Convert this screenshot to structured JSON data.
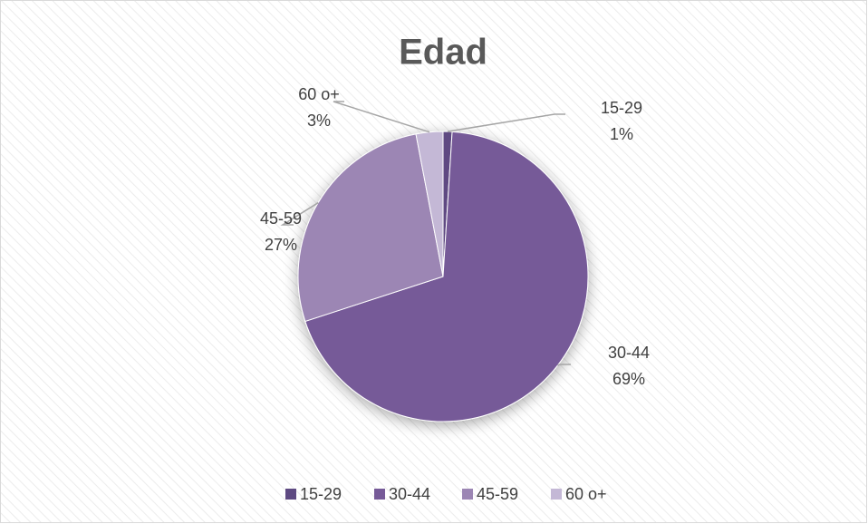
{
  "chart_data": {
    "type": "pie",
    "title": "Edad",
    "categories": [
      "15-29",
      "30-44",
      "45-59",
      "60 o+"
    ],
    "values": [
      1,
      69,
      27,
      3
    ],
    "value_labels": [
      "1%",
      "69%",
      "27%",
      "3%"
    ],
    "colors": [
      "#5e4a82",
      "#765a98",
      "#9c86b4",
      "#c4b8d6"
    ],
    "legend": "bottom"
  }
}
